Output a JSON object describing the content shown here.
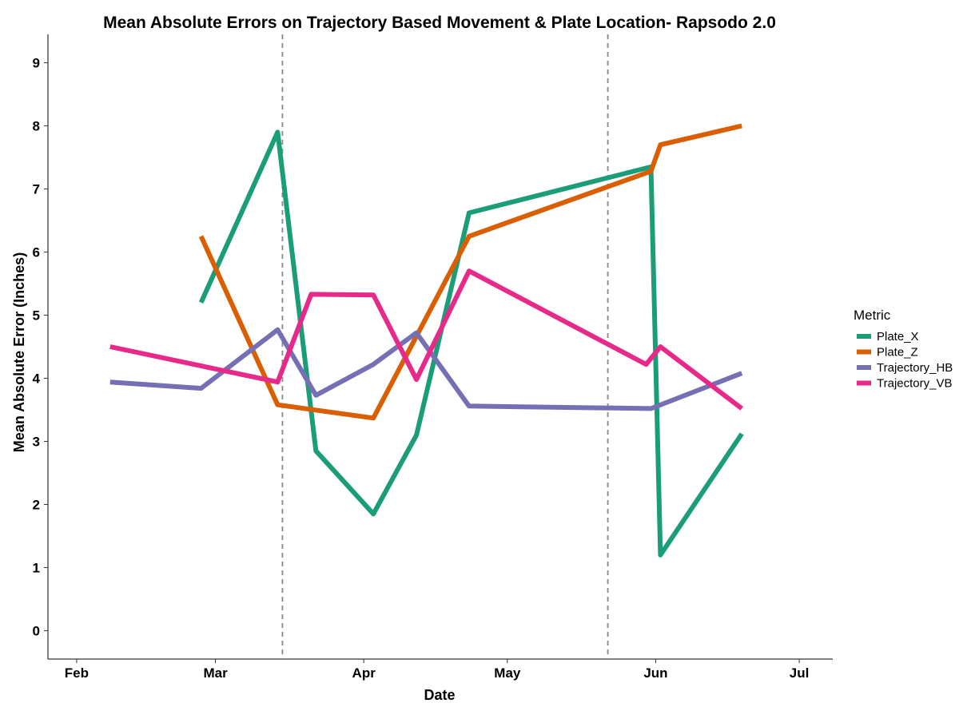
{
  "chart_data": {
    "type": "line",
    "title": "Mean Absolute Errors on Trajectory Based Movement & Plate Location- Rapsodo 2.0",
    "xlabel": "Date",
    "ylabel": "Mean Absolute Error (Inches)",
    "x_ticks": [
      {
        "date": "2024-02-01",
        "label": "Feb"
      },
      {
        "date": "2024-03-01",
        "label": "Mar"
      },
      {
        "date": "2024-04-01",
        "label": "Apr"
      },
      {
        "date": "2024-05-01",
        "label": "May"
      },
      {
        "date": "2024-06-01",
        "label": "Jun"
      },
      {
        "date": "2024-07-01",
        "label": "Jul"
      }
    ],
    "y_ticks": [
      0,
      1,
      2,
      3,
      4,
      5,
      6,
      7,
      8,
      9
    ],
    "xlim": [
      "2024-01-26",
      "2024-07-08"
    ],
    "ylim": [
      -0.45,
      9.45
    ],
    "grid": false,
    "vlines": [
      "2024-03-15",
      "2024-05-22"
    ],
    "legend": {
      "title": "Metric",
      "position": "right"
    },
    "series": [
      {
        "name": "Plate_X",
        "color": "#1B9E77",
        "points": [
          {
            "x": "2024-02-27",
            "y": 5.2
          },
          {
            "x": "2024-03-14",
            "y": 7.9
          },
          {
            "x": "2024-03-22",
            "y": 2.85
          },
          {
            "x": "2024-04-03",
            "y": 1.85
          },
          {
            "x": "2024-04-12",
            "y": 3.1
          },
          {
            "x": "2024-04-23",
            "y": 6.62
          },
          {
            "x": "2024-05-31",
            "y": 7.35
          },
          {
            "x": "2024-06-02",
            "y": 1.2
          },
          {
            "x": "2024-06-19",
            "y": 3.12
          }
        ]
      },
      {
        "name": "Plate_Z",
        "color": "#D95F02",
        "points": [
          {
            "x": "2024-02-27",
            "y": 6.25
          },
          {
            "x": "2024-03-14",
            "y": 3.58
          },
          {
            "x": "2024-04-03",
            "y": 3.37
          },
          {
            "x": "2024-04-23",
            "y": 6.25
          },
          {
            "x": "2024-05-31",
            "y": 7.28
          },
          {
            "x": "2024-06-02",
            "y": 7.7
          },
          {
            "x": "2024-06-19",
            "y": 8.0
          }
        ]
      },
      {
        "name": "Trajectory_HB",
        "color": "#7570B3",
        "points": [
          {
            "x": "2024-02-08",
            "y": 3.94
          },
          {
            "x": "2024-02-27",
            "y": 3.84
          },
          {
            "x": "2024-03-14",
            "y": 4.77
          },
          {
            "x": "2024-03-22",
            "y": 3.73
          },
          {
            "x": "2024-04-03",
            "y": 4.22
          },
          {
            "x": "2024-04-12",
            "y": 4.72
          },
          {
            "x": "2024-04-23",
            "y": 3.56
          },
          {
            "x": "2024-05-31",
            "y": 3.52
          },
          {
            "x": "2024-06-19",
            "y": 4.08
          }
        ]
      },
      {
        "name": "Trajectory_VB",
        "color": "#E7298A",
        "points": [
          {
            "x": "2024-02-08",
            "y": 4.5
          },
          {
            "x": "2024-03-14",
            "y": 3.94
          },
          {
            "x": "2024-03-21",
            "y": 5.33
          },
          {
            "x": "2024-04-03",
            "y": 5.32
          },
          {
            "x": "2024-04-12",
            "y": 3.98
          },
          {
            "x": "2024-04-23",
            "y": 5.7
          },
          {
            "x": "2024-05-30",
            "y": 4.22
          },
          {
            "x": "2024-06-02",
            "y": 4.5
          },
          {
            "x": "2024-06-19",
            "y": 3.52
          }
        ]
      }
    ]
  }
}
